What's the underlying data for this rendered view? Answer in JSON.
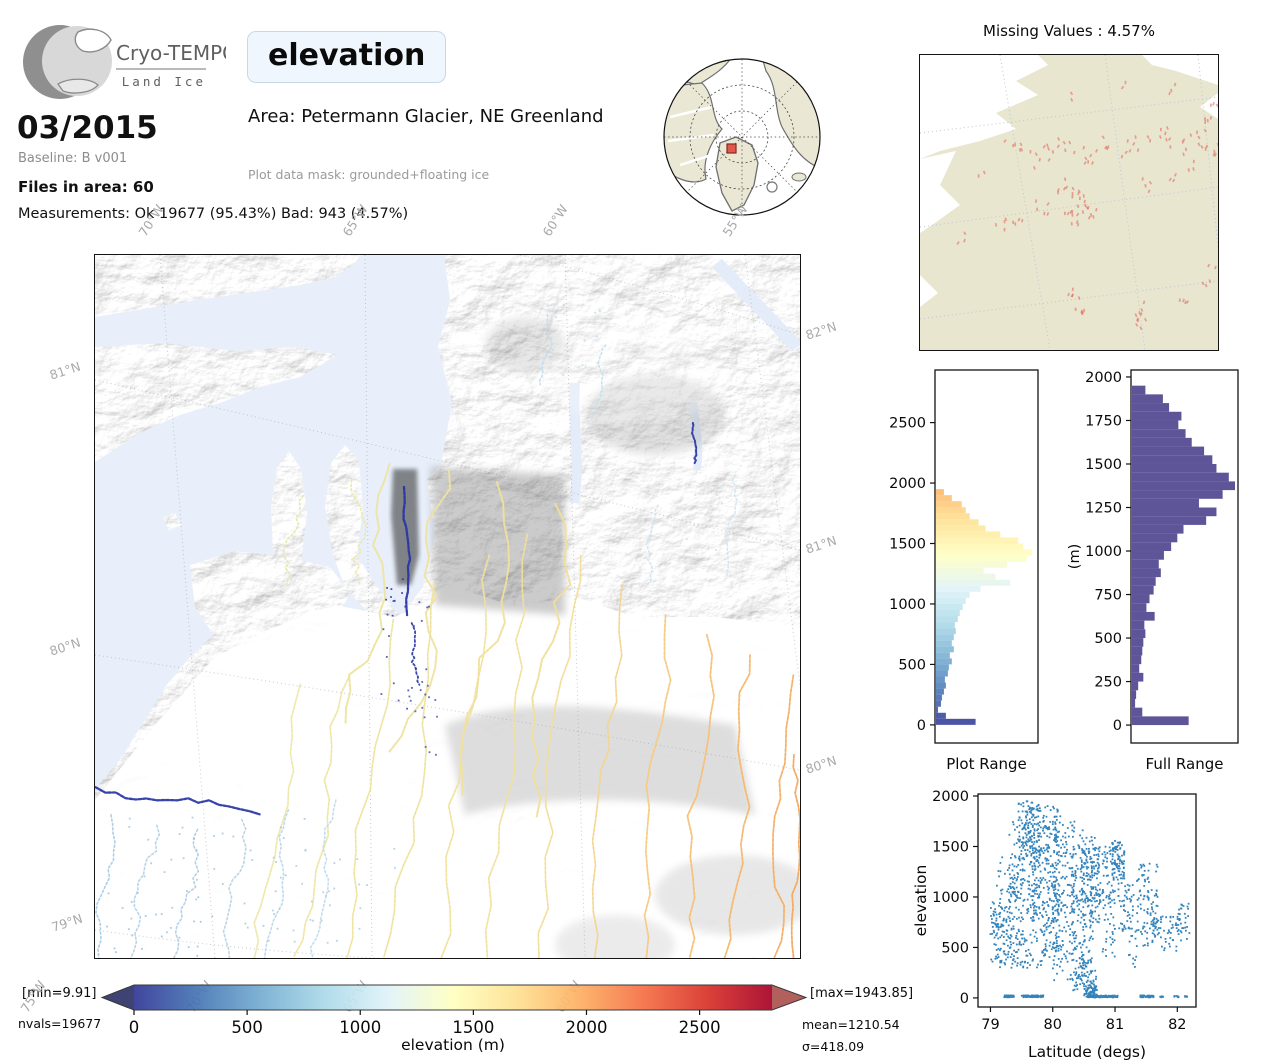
{
  "header": {
    "logo_title": "Cryo-TEMPO",
    "logo_subtitle": "Land Ice",
    "variable_title": "elevation",
    "date": "03/2015",
    "baseline": "Baseline: B v001",
    "files": "Files in area: 60",
    "measurements": "Measurements: Ok 19677 (95.43%) Bad: 943 (4.57%)",
    "area": "Area: Petermann Glacier, NE Greenland",
    "mask": "Plot data mask: grounded+floating ice"
  },
  "globe_inset": {
    "marker_color": "#e2493d",
    "land_color": "#eae8d4",
    "coast_color": "#6f6f6f"
  },
  "missing_map": {
    "title": "Missing Values : 4.57%",
    "land_color": "#e9e6d0",
    "ocean_color": "#ffffff",
    "marker_color": "#e06055",
    "clusters": [
      [
        95,
        93,
        6,
        10
      ],
      [
        118,
        100,
        8,
        12
      ],
      [
        140,
        90,
        6,
        10
      ],
      [
        163,
        95,
        7,
        12
      ],
      [
        185,
        86,
        5,
        9
      ],
      [
        205,
        92,
        4,
        8
      ],
      [
        143,
        128,
        5,
        8
      ],
      [
        158,
        142,
        9,
        10
      ],
      [
        150,
        160,
        10,
        12
      ],
      [
        168,
        152,
        7,
        9
      ],
      [
        120,
        152,
        5,
        9
      ],
      [
        98,
        162,
        4,
        8
      ],
      [
        78,
        168,
        4,
        7
      ],
      [
        40,
        182,
        3,
        5
      ],
      [
        222,
        88,
        5,
        9
      ],
      [
        240,
        80,
        5,
        9
      ],
      [
        258,
        90,
        6,
        10
      ],
      [
        276,
        84,
        7,
        10
      ],
      [
        290,
        92,
        5,
        8
      ],
      [
        288,
        62,
        4,
        7
      ],
      [
        294,
        48,
        3,
        5
      ],
      [
        250,
        32,
        3,
        5
      ],
      [
        205,
        28,
        2,
        4
      ],
      [
        150,
        40,
        2,
        4
      ],
      [
        155,
        238,
        5,
        7
      ],
      [
        160,
        252,
        5,
        7
      ],
      [
        218,
        252,
        5,
        7
      ],
      [
        222,
        266,
        5,
        7
      ],
      [
        262,
        245,
        4,
        6
      ],
      [
        286,
        228,
        3,
        5
      ],
      [
        292,
        210,
        2,
        4
      ],
      [
        60,
        120,
        2,
        4
      ],
      [
        230,
        130,
        4,
        8
      ],
      [
        250,
        120,
        3,
        6
      ],
      [
        270,
        110,
        3,
        6
      ]
    ]
  },
  "main_map": {
    "ocean_color": "#e8effa",
    "lat_left": [
      "81°N",
      "80°N",
      "79°N"
    ],
    "lat_right": [
      "82°N",
      "81°N",
      "80°N"
    ],
    "lon_top": [
      "70°W",
      "65°W",
      "60°W",
      "55°W"
    ],
    "lon_bottom": [
      "75°W",
      "70°W",
      "65°W",
      "60°W"
    ],
    "tracks": [
      [
        208,
        430,
        160,
        703,
        "#efe7a6",
        6,
        1.7,
        0
      ],
      [
        252,
        420,
        205,
        703,
        "#eee5a2",
        7,
        1.7,
        0
      ],
      [
        300,
        365,
        250,
        703,
        "#efe39e",
        7,
        1.7,
        0
      ],
      [
        345,
        330,
        298,
        703,
        "#eee29c",
        8,
        1.7,
        0
      ],
      [
        392,
        300,
        345,
        703,
        "#f0e29c",
        8,
        1.7,
        0
      ],
      [
        438,
        280,
        392,
        703,
        "#f1e09a",
        8,
        1.7,
        0
      ],
      [
        482,
        300,
        440,
        703,
        "#f2dd96",
        8,
        1.7,
        0
      ],
      [
        528,
        330,
        492,
        703,
        "#f4d48c",
        8,
        1.7,
        0
      ],
      [
        572,
        360,
        545,
        703,
        "#f5ca82",
        8,
        1.8,
        0
      ],
      [
        615,
        380,
        592,
        703,
        "#f6c076",
        8,
        1.8,
        0
      ],
      [
        655,
        400,
        638,
        703,
        "#f5b76c",
        8,
        1.8,
        0
      ],
      [
        692,
        420,
        678,
        703,
        "#f4af64",
        8,
        1.8,
        0
      ],
      [
        704,
        500,
        699,
        703,
        "#f3a85e",
        5,
        1.8,
        0
      ],
      [
        300,
        210,
        255,
        470,
        "#ece49e",
        14,
        2,
        0
      ],
      [
        352,
        215,
        310,
        500,
        "#eee1a0",
        16,
        2,
        0
      ],
      [
        420,
        230,
        370,
        540,
        "#f0e09c",
        16,
        2,
        0
      ],
      [
        470,
        250,
        430,
        560,
        "#f1de98",
        14,
        2,
        0
      ],
      [
        18,
        560,
        2,
        703,
        "#aacbe4",
        5,
        1.6,
        1
      ],
      [
        60,
        570,
        35,
        703,
        "#b4d2e8",
        6,
        1.6,
        1
      ],
      [
        105,
        575,
        80,
        703,
        "#b0cfe6",
        6,
        1.6,
        1
      ],
      [
        150,
        565,
        128,
        703,
        "#b7d4e8",
        6,
        1.6,
        1
      ],
      [
        195,
        555,
        172,
        703,
        "#bcd8ea",
        6,
        1.6,
        1
      ],
      [
        240,
        545,
        220,
        703,
        "#c2dcec",
        6,
        1.6,
        1
      ],
      [
        455,
        60,
        448,
        130,
        "#bfdcec",
        4,
        1.5,
        1
      ],
      [
        510,
        90,
        502,
        160,
        "#c4dfee",
        4,
        1.5,
        1
      ],
      [
        560,
        250,
        552,
        330,
        "#cde4f0",
        4,
        1.5,
        1
      ],
      [
        640,
        220,
        630,
        320,
        "#d0e6f0",
        4,
        1.5,
        1
      ],
      [
        310,
        232,
        314,
        360,
        "#2b34a4",
        3,
        2.3,
        0
      ],
      [
        318,
        368,
        322,
        430,
        "#333ea8",
        3,
        1.8,
        1
      ],
      [
        598,
        168,
        601,
        208,
        "#2f38a6",
        2,
        2,
        0
      ],
      [
        0,
        536,
        165,
        556,
        "#2e3aa6",
        4,
        2.3,
        0
      ],
      [
        205,
        240,
        188,
        330,
        "#e3e8b0",
        6,
        1.6,
        1
      ],
      [
        258,
        225,
        268,
        330,
        "#e9e9ac",
        8,
        1.6,
        1
      ]
    ],
    "dot_clusters": [
      [
        310,
        400,
        26,
        60,
        18,
        "#3a46aa"
      ],
      [
        330,
        470,
        20,
        50,
        14,
        "#4553b0"
      ],
      [
        300,
        330,
        10,
        30,
        10,
        "#2b34a4"
      ],
      [
        120,
        620,
        90,
        60,
        40,
        "#9fc6e0"
      ],
      [
        240,
        640,
        70,
        50,
        30,
        "#a8cce4"
      ],
      [
        60,
        660,
        50,
        40,
        22,
        "#98c2de"
      ],
      [
        480,
        80,
        30,
        40,
        12,
        "#bcdcee"
      ],
      [
        610,
        260,
        25,
        35,
        10,
        "#c2e0f0"
      ]
    ]
  },
  "colorbar": {
    "label": "elevation (m)",
    "ticks": [
      "0",
      "500",
      "1000",
      "1500",
      "2000",
      "2500"
    ],
    "tick_values": [
      0,
      500,
      1000,
      1500,
      2000,
      2500
    ],
    "vmin": 0,
    "vmax": 2820,
    "min_label": "[min=9.91]",
    "max_label": "[max=1943.85]",
    "nvals_label": "nvals=19677",
    "mean_label": "mean=1210.54",
    "sigma_label": "σ=418.09",
    "under_arrow_color": "#3e4374",
    "over_arrow_color": "#b2605c",
    "cmap": [
      "#313695",
      "#4575b4",
      "#74add1",
      "#abd9e9",
      "#e0f3f8",
      "#ffffbf",
      "#fee090",
      "#fdae61",
      "#f46d43",
      "#d73027",
      "#a50026"
    ]
  },
  "chart_data": [
    {
      "type": "bar",
      "orientation": "horizontal",
      "title": "Plot Range",
      "ylabel": "",
      "bin_start": 0,
      "bin_size": 50,
      "ylim": [
        0,
        2930
      ],
      "yticks": [
        0,
        500,
        1000,
        1500,
        2000,
        2500
      ],
      "ytick_labels": [
        "0",
        "500",
        "1000",
        "1500",
        "2000",
        "2500"
      ],
      "color_mode": "elevation-colormap",
      "values": [
        0.4,
        0.1,
        0.02,
        0.05,
        0.06,
        0.08,
        0.1,
        0.09,
        0.12,
        0.13,
        0.16,
        0.14,
        0.18,
        0.16,
        0.18,
        0.2,
        0.19,
        0.22,
        0.24,
        0.27,
        0.3,
        0.34,
        0.45,
        0.75,
        0.6,
        0.48,
        0.72,
        0.92,
        0.97,
        0.88,
        0.83,
        0.65,
        0.5,
        0.43,
        0.34,
        0.3,
        0.26,
        0.16,
        0.08
      ]
    },
    {
      "type": "bar",
      "orientation": "horizontal",
      "title": "Full Range",
      "ylabel": "(m)",
      "bin_start": 0,
      "bin_size": 50,
      "ylim": [
        0,
        2060
      ],
      "yticks": [
        0,
        250,
        500,
        750,
        1000,
        1250,
        1500,
        1750,
        2000
      ],
      "ytick_labels": [
        "0",
        "250",
        "500",
        "750",
        "1000",
        "1250",
        "1500",
        "1750",
        "2000"
      ],
      "color": "#483d8b",
      "values": [
        0.55,
        0.1,
        0.03,
        0.04,
        0.06,
        0.11,
        0.07,
        0.09,
        0.1,
        0.11,
        0.13,
        0.12,
        0.22,
        0.14,
        0.17,
        0.21,
        0.23,
        0.28,
        0.26,
        0.31,
        0.38,
        0.44,
        0.5,
        0.72,
        0.82,
        0.65,
        0.88,
        1.0,
        0.94,
        0.82,
        0.78,
        0.7,
        0.58,
        0.52,
        0.45,
        0.48,
        0.36,
        0.3,
        0.13,
        0.0
      ]
    },
    {
      "type": "scatter",
      "xlabel": "Latitude (degs)",
      "ylabel": "elevation",
      "xlim": [
        78.8,
        82.3
      ],
      "ylim": [
        -90,
        2020
      ],
      "xticks": [
        79,
        80,
        81,
        82
      ],
      "xtick_labels": [
        "79",
        "80",
        "81",
        "82"
      ],
      "yticks": [
        0,
        500,
        1000,
        1500,
        2000
      ],
      "ytick_labels": [
        "0",
        "500",
        "1000",
        "1500",
        "2000"
      ],
      "color": "#1f77b4",
      "clusters": [
        [
          79.0,
          79.3,
          350,
          950,
          60
        ],
        [
          79.1,
          79.5,
          300,
          1400,
          80
        ],
        [
          79.3,
          79.75,
          250,
          1750,
          120
        ],
        [
          79.45,
          79.8,
          1300,
          1950,
          140
        ],
        [
          79.6,
          80.1,
          800,
          1900,
          160
        ],
        [
          79.8,
          80.35,
          400,
          1800,
          150
        ],
        [
          79.3,
          80.1,
          300,
          1200,
          120
        ],
        [
          80.0,
          80.5,
          150,
          1700,
          150
        ],
        [
          80.3,
          80.65,
          30,
          1500,
          120
        ],
        [
          80.45,
          80.75,
          700,
          1600,
          100
        ],
        [
          80.6,
          81.0,
          900,
          1500,
          110
        ],
        [
          80.35,
          80.7,
          60,
          400,
          60
        ],
        [
          80.5,
          80.72,
          5,
          120,
          50
        ],
        [
          80.95,
          81.15,
          1150,
          1570,
          90
        ],
        [
          81.05,
          81.3,
          650,
          1150,
          50
        ],
        [
          81.35,
          81.7,
          500,
          1350,
          90
        ],
        [
          81.6,
          81.75,
          600,
          800,
          25
        ],
        [
          81.75,
          82.0,
          450,
          850,
          30
        ],
        [
          82.0,
          82.2,
          550,
          950,
          35
        ],
        [
          79.22,
          79.38,
          5,
          25,
          35
        ],
        [
          79.5,
          79.85,
          5,
          25,
          70
        ],
        [
          80.55,
          81.05,
          5,
          25,
          110
        ],
        [
          81.4,
          81.62,
          5,
          25,
          45
        ],
        [
          81.72,
          81.78,
          5,
          20,
          6
        ],
        [
          81.95,
          82.02,
          5,
          20,
          8
        ],
        [
          82.12,
          82.18,
          5,
          20,
          6
        ],
        [
          79.0,
          79.2,
          700,
          950,
          20
        ],
        [
          81.2,
          81.35,
          300,
          700,
          15
        ],
        [
          80.8,
          81.0,
          400,
          900,
          25
        ]
      ]
    }
  ]
}
